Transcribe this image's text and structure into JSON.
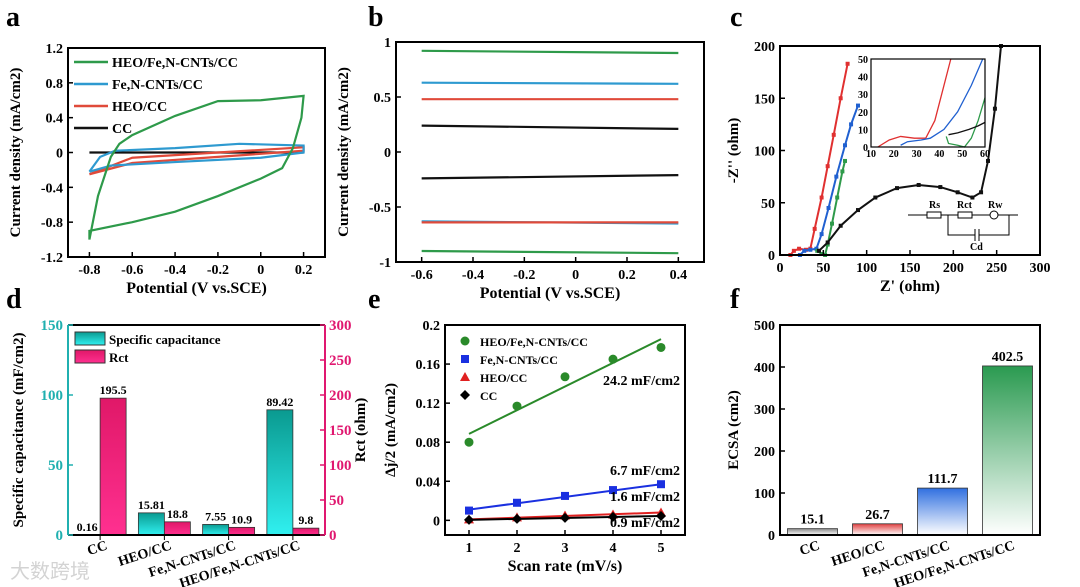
{
  "watermark": "大数跨境",
  "chart_data": [
    {
      "panel": "a",
      "type": "line",
      "xlabel": "Potential (V vs.SCE)",
      "ylabel": "Current density (mA/cm2)",
      "xlim": [
        -0.9,
        0.3
      ],
      "ylim": [
        -1.2,
        1.2
      ],
      "xticks": [
        -0.8,
        -0.6,
        -0.4,
        -0.2,
        0.0,
        0.2
      ],
      "xtick_labels": [
        "-0.8",
        "-0.6",
        "-0.4",
        "-0.2",
        "0.0",
        "0.2"
      ],
      "yticks": [
        -1.2,
        -0.8,
        -0.4,
        0.0,
        0.4,
        0.8,
        1.2
      ],
      "ytick_labels": [
        "-1.2",
        "-0.8",
        "-0.4",
        "0.0",
        "0.4",
        "0.8",
        "1.2"
      ],
      "legend": "top-left",
      "series": [
        {
          "name": "HEO/Fe,N-CNTs/CC",
          "color": "#2e9a4a",
          "points": [
            [
              -0.8,
              -1.0
            ],
            [
              -0.76,
              -0.5
            ],
            [
              -0.7,
              -0.05
            ],
            [
              -0.66,
              0.1
            ],
            [
              -0.6,
              0.2
            ],
            [
              -0.4,
              0.42
            ],
            [
              -0.2,
              0.59
            ],
            [
              0,
              0.6
            ],
            [
              0.2,
              0.65
            ],
            [
              0.19,
              0.4
            ],
            [
              0.15,
              0.05
            ],
            [
              0.1,
              -0.18
            ],
            [
              0,
              -0.3
            ],
            [
              -0.2,
              -0.5
            ],
            [
              -0.4,
              -0.68
            ],
            [
              -0.6,
              -0.8
            ],
            [
              -0.8,
              -0.9
            ],
            [
              -0.8,
              -1.0
            ]
          ]
        },
        {
          "name": "Fe,N-CNTs/CC",
          "color": "#2e9ad0",
          "points": [
            [
              -0.8,
              -0.22
            ],
            [
              -0.75,
              -0.05
            ],
            [
              -0.68,
              0.02
            ],
            [
              -0.4,
              0.05
            ],
            [
              -0.1,
              0.1
            ],
            [
              0.2,
              0.08
            ],
            [
              0.2,
              0.0
            ],
            [
              0,
              -0.06
            ],
            [
              -0.4,
              -0.11
            ],
            [
              -0.7,
              -0.15
            ],
            [
              -0.8,
              -0.22
            ]
          ]
        },
        {
          "name": "HEO/CC",
          "color": "#e04a3a",
          "points": [
            [
              -0.8,
              -0.25
            ],
            [
              -0.6,
              -0.06
            ],
            [
              -0.2,
              0.0
            ],
            [
              0.2,
              0.06
            ],
            [
              0.2,
              0.02
            ],
            [
              -0.2,
              -0.05
            ],
            [
              -0.6,
              -0.12
            ],
            [
              -0.8,
              -0.25
            ]
          ]
        },
        {
          "name": "CC",
          "color": "#111111",
          "points": [
            [
              -0.8,
              0.0
            ],
            [
              0.2,
              0.0
            ]
          ]
        }
      ]
    },
    {
      "panel": "b",
      "type": "line",
      "xlabel": "Potential (V vs.SCE)",
      "ylabel": "Current density (mA/cm2)",
      "xlim": [
        -0.7,
        0.5
      ],
      "ylim": [
        -1.0,
        1.0
      ],
      "xticks": [
        -0.6,
        -0.4,
        -0.2,
        0.0,
        0.2,
        0.4
      ],
      "xtick_labels": [
        "-0.6",
        "-0.4",
        "-0.2",
        "0.0",
        "0.2",
        "0.4"
      ],
      "yticks": [
        -1.0,
        -0.5,
        0.0,
        0.5,
        1.0
      ],
      "ytick_labels": [
        "-1.0",
        "-0.5",
        "0.0",
        "0.5",
        "1.0"
      ],
      "series": [
        {
          "name": "HEO/Fe,N-CNTs/CC",
          "color": "#2e9a4a",
          "segments": [
            [
              [
                -0.6,
                0.92
              ],
              [
                0.4,
                0.9
              ]
            ],
            [
              [
                -0.6,
                -0.9
              ],
              [
                0.4,
                -0.92
              ]
            ]
          ]
        },
        {
          "name": "Fe,N-CNTs/CC",
          "color": "#2e9ad0",
          "segments": [
            [
              [
                -0.6,
                0.63
              ],
              [
                0.4,
                0.62
              ]
            ],
            [
              [
                -0.6,
                -0.63
              ],
              [
                0.4,
                -0.65
              ]
            ]
          ]
        },
        {
          "name": "HEO/CC",
          "color": "#e04a3a",
          "segments": [
            [
              [
                -0.6,
                0.48
              ],
              [
                0.4,
                0.48
              ]
            ],
            [
              [
                -0.6,
                -0.64
              ],
              [
                0.4,
                -0.64
              ]
            ]
          ]
        },
        {
          "name": "CC",
          "color": "#111111",
          "segments": [
            [
              [
                -0.6,
                0.24
              ],
              [
                0.4,
                0.21
              ]
            ],
            [
              [
                -0.6,
                -0.24
              ],
              [
                0.4,
                -0.21
              ]
            ]
          ]
        }
      ]
    },
    {
      "panel": "c",
      "type": "scatter",
      "xlabel": "Z' (ohm)",
      "ylabel": "-Z'' (ohm)",
      "xlim": [
        0,
        300
      ],
      "ylim": [
        0,
        200
      ],
      "xticks": [
        0,
        50,
        100,
        150,
        200,
        250,
        300
      ],
      "xtick_labels": [
        "0",
        "50",
        "100",
        "150",
        "200",
        "250",
        "300"
      ],
      "yticks": [
        0,
        50,
        100,
        150,
        200
      ],
      "ytick_labels": [
        "0",
        "50",
        "100",
        "150",
        "200"
      ],
      "series": [
        {
          "name": "HEO/CC",
          "color": "#e03030",
          "points": [
            [
              12,
              0
            ],
            [
              16,
              4
            ],
            [
              22,
              6
            ],
            [
              30,
              5
            ],
            [
              35,
              6
            ],
            [
              40,
              25
            ],
            [
              48,
              55
            ],
            [
              55,
              85
            ],
            [
              62,
              115
            ],
            [
              70,
              150
            ],
            [
              78,
              183
            ]
          ]
        },
        {
          "name": "Fe,N-CNTs/CC",
          "color": "#2060d0",
          "points": [
            [
              23,
              0
            ],
            [
              28,
              4
            ],
            [
              35,
              5
            ],
            [
              42,
              6
            ],
            [
              48,
              20
            ],
            [
              56,
              45
            ],
            [
              65,
              75
            ],
            [
              75,
              105
            ],
            [
              82,
              125
            ],
            [
              90,
              143
            ]
          ]
        },
        {
          "name": "HEO/Fe,N-CNTs/CC",
          "color": "#2e9a4a",
          "points": [
            [
              43,
              4
            ],
            [
              48,
              1
            ],
            [
              52,
              0
            ],
            [
              55,
              10
            ],
            [
              60,
              30
            ],
            [
              66,
              55
            ],
            [
              72,
              80
            ],
            [
              75,
              90
            ]
          ]
        },
        {
          "name": "CC",
          "color": "#111111",
          "points": [
            [
              45,
              4
            ],
            [
              55,
              12
            ],
            [
              70,
              28
            ],
            [
              90,
              43
            ],
            [
              110,
              55
            ],
            [
              135,
              64
            ],
            [
              160,
              67
            ],
            [
              185,
              65
            ],
            [
              205,
              60
            ],
            [
              222,
              55
            ],
            [
              232,
              60
            ],
            [
              240,
              90
            ],
            [
              248,
              140
            ],
            [
              255,
              200
            ]
          ]
        }
      ],
      "inset": {
        "xlim": [
          10,
          60
        ],
        "ylim": [
          0,
          50
        ],
        "xticks": [
          10,
          20,
          30,
          40,
          50,
          60
        ],
        "xtick_labels": [
          "10",
          "20",
          "30",
          "40",
          "50",
          "60"
        ],
        "yticks": [
          0,
          10,
          20,
          30,
          40,
          50
        ],
        "ytick_labels": [
          "0",
          "10",
          "20",
          "30",
          "40",
          "50"
        ],
        "series": [
          {
            "color": "#e03030",
            "points": [
              [
                13,
                0
              ],
              [
                18,
                4
              ],
              [
                23,
                6
              ],
              [
                29,
                5
              ],
              [
                34,
                5
              ],
              [
                38,
                15
              ],
              [
                42,
                35
              ],
              [
                45,
                50
              ]
            ]
          },
          {
            "color": "#2060d0",
            "points": [
              [
                23,
                1
              ],
              [
                26,
                3
              ],
              [
                32,
                4
              ],
              [
                36,
                5
              ],
              [
                42,
                10
              ],
              [
                48,
                20
              ],
              [
                54,
                35
              ],
              [
                59,
                50
              ]
            ]
          },
          {
            "color": "#2e9a4a",
            "points": [
              [
                43,
                6
              ],
              [
                44,
                2
              ],
              [
                48,
                1
              ],
              [
                51,
                0
              ],
              [
                54,
                5
              ],
              [
                57,
                15
              ],
              [
                60,
                28
              ]
            ]
          },
          {
            "color": "#111111",
            "points": [
              [
                44,
                7
              ],
              [
                48,
                8
              ],
              [
                53,
                10
              ],
              [
                57,
                12
              ],
              [
                60,
                14
              ]
            ]
          }
        ]
      },
      "circuit": {
        "labels": [
          "Rs",
          "Rct",
          "Rw",
          "Cd"
        ]
      }
    },
    {
      "panel": "d",
      "type": "bar",
      "categories": [
        "CC",
        "HEO/CC",
        "Fe,N-CNTs/CC",
        "HEO/Fe,N-CNTs/CC"
      ],
      "ylabel": "Specific capacitance (mF/cm2)",
      "y2label": "Rct (ohm)",
      "ylim": [
        0,
        150
      ],
      "y2lim": [
        0,
        300
      ],
      "yticks": [
        0,
        50,
        100,
        150
      ],
      "ytick_labels": [
        "0",
        "50",
        "100",
        "150"
      ],
      "y2ticks": [
        0,
        50,
        100,
        150,
        200,
        250,
        300
      ],
      "y2tick_labels": [
        "0",
        "50",
        "100",
        "150",
        "200",
        "250",
        "300"
      ],
      "series": [
        {
          "name": "Specific capacitance",
          "axis": "left",
          "color": "#20c0c0",
          "values": [
            0.16,
            15.81,
            7.55,
            89.42
          ],
          "labels": [
            "0.16",
            "15.81",
            "7.55",
            "89.42"
          ]
        },
        {
          "name": "Rct",
          "axis": "right",
          "color": "#f0207a",
          "values": [
            195.5,
            18.8,
            10.9,
            9.8
          ],
          "labels": [
            "195.5",
            "18.8",
            "10.9",
            "9.8"
          ]
        }
      ],
      "legend": "top-left"
    },
    {
      "panel": "e",
      "type": "scatter",
      "xlabel": "Scan rate (mV/s)",
      "ylabel": "Δj/2 (mA/cm2)",
      "xlim": [
        0.5,
        5.5
      ],
      "ylim": [
        -0.015,
        0.2
      ],
      "xticks": [
        1,
        2,
        3,
        4,
        5
      ],
      "xtick_labels": [
        "1",
        "2",
        "3",
        "4",
        "5"
      ],
      "yticks": [
        0,
        0.04,
        0.08,
        0.12,
        0.16,
        0.2
      ],
      "ytick_labels": [
        "0.00",
        "0.04",
        "0.08",
        "0.12",
        "0.16",
        "0.20"
      ],
      "series": [
        {
          "name": "HEO/Fe,N-CNTs/CC",
          "color": "#2a8a2a",
          "marker": "circle",
          "x": [
            1,
            2,
            3,
            4,
            5
          ],
          "y": [
            0.08,
            0.117,
            0.147,
            0.165,
            0.177
          ],
          "fit": [
            0.0885,
            0.1855
          ],
          "annotation": "24.2 mF/cm2"
        },
        {
          "name": "Fe,N-CNTs/CC",
          "color": "#1a30e0",
          "marker": "square",
          "x": [
            1,
            2,
            3,
            4,
            5
          ],
          "y": [
            0.01,
            0.018,
            0.025,
            0.031,
            0.037
          ],
          "fit": [
            0.011,
            0.037
          ],
          "annotation": "6.7 mF/cm2"
        },
        {
          "name": "HEO/CC",
          "color": "#e02020",
          "marker": "triangle",
          "x": [
            1,
            2,
            3,
            4,
            5
          ],
          "y": [
            0.001,
            0.003,
            0.005,
            0.006,
            0.008
          ],
          "fit": [
            0.001,
            0.008
          ],
          "annotation": "1.6 mF/cm2"
        },
        {
          "name": "CC",
          "color": "#000000",
          "marker": "diamond",
          "x": [
            1,
            2,
            3,
            4,
            5
          ],
          "y": [
            0.0005,
            0.0015,
            0.0025,
            0.0035,
            0.0045
          ],
          "fit": [
            0.0005,
            0.0045
          ],
          "annotation": "0.9 mF/cm2"
        }
      ],
      "legend": "top-left"
    },
    {
      "panel": "f",
      "type": "bar",
      "categories": [
        "CC",
        "HEO/CC",
        "Fe,N-CNTs/CC",
        "HEO/Fe,N-CNTs/CC"
      ],
      "ylabel": "ECSA (cm2)",
      "ylim": [
        0,
        500
      ],
      "yticks": [
        0,
        100,
        200,
        300,
        400,
        500
      ],
      "ytick_labels": [
        "0",
        "100",
        "200",
        "300",
        "400",
        "500"
      ],
      "values": [
        15.1,
        26.7,
        111.7,
        402.5
      ],
      "labels": [
        "15.1",
        "26.7",
        "111.7",
        "402.5"
      ],
      "colors": [
        "#8a8a8a",
        "#e04040",
        "#3070e0",
        "#2a9a50"
      ]
    }
  ],
  "panels": [
    "a",
    "b",
    "c",
    "d",
    "e",
    "f"
  ]
}
